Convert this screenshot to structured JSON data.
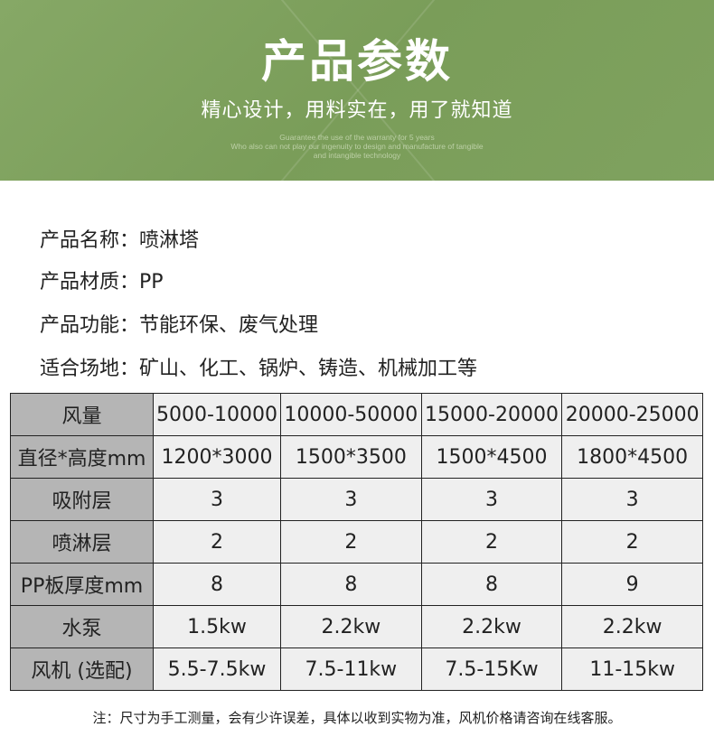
{
  "header": {
    "title": "产品参数",
    "subtitle": "精心设计，用料实在，用了就知道",
    "english": [
      "Guarantee the use of the warranty for 5 years",
      "Who also can not play our ingenuity to design and manufacture of tangible",
      "and intangible technology"
    ]
  },
  "info": [
    {
      "label": "产品名称：",
      "value": "喷淋塔"
    },
    {
      "label": "产品材质：",
      "value": "PP"
    },
    {
      "label": "产品功能：",
      "value": "节能环保、废气处理"
    },
    {
      "label": "适合场地：",
      "value": "矿山、化工、锅炉、铸造、机械加工等"
    }
  ],
  "table": {
    "rows": [
      {
        "label": "风量",
        "values": [
          "5000-10000",
          "10000-50000",
          "15000-20000",
          "20000-25000"
        ]
      },
      {
        "label": "直径*高度mm",
        "values": [
          "1200*3000",
          "1500*3500",
          "1500*4500",
          "1800*4500"
        ]
      },
      {
        "label": "吸附层",
        "values": [
          "3",
          "3",
          "3",
          "3"
        ]
      },
      {
        "label": "喷淋层",
        "values": [
          "2",
          "2",
          "2",
          "2"
        ]
      },
      {
        "label": "PP板厚度mm",
        "values": [
          "8",
          "8",
          "8",
          "9"
        ]
      },
      {
        "label": "水泵",
        "values": [
          "1.5kw",
          "2.2kw",
          "2.2kw",
          "2.2kw"
        ]
      },
      {
        "label": "风机 (选配)",
        "values": [
          "5.5-7.5kw",
          "7.5-11kw",
          "7.5-15Kw",
          "11-15kw"
        ]
      }
    ]
  },
  "note": "注：尺寸为手工测量，会有少许误差，具体以收到实物为准，风机价格请咨询在线客服。"
}
